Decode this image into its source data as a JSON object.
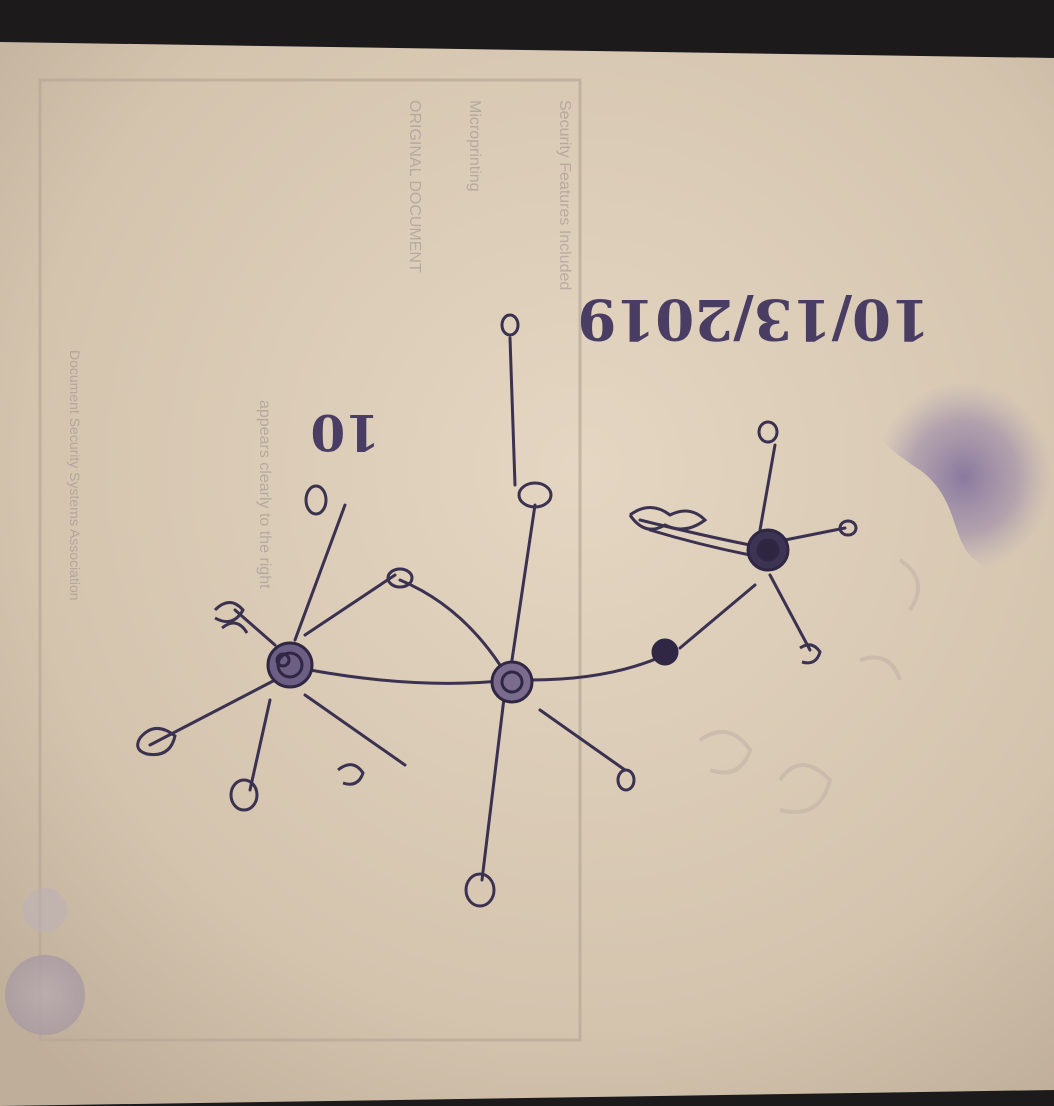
{
  "photo": {
    "paper_color": "#d8c9b4",
    "ink_color": "#3b3150",
    "background_color": "#1d1a1c"
  },
  "handwriting": {
    "date": "10/13/2019",
    "label": "10"
  },
  "printed_backside_text": [
    "Security Features Included",
    "Microprinting",
    "ORIGINAL DOCUMENT",
    "appears clearly to the right",
    "Document Security Systems Association"
  ]
}
